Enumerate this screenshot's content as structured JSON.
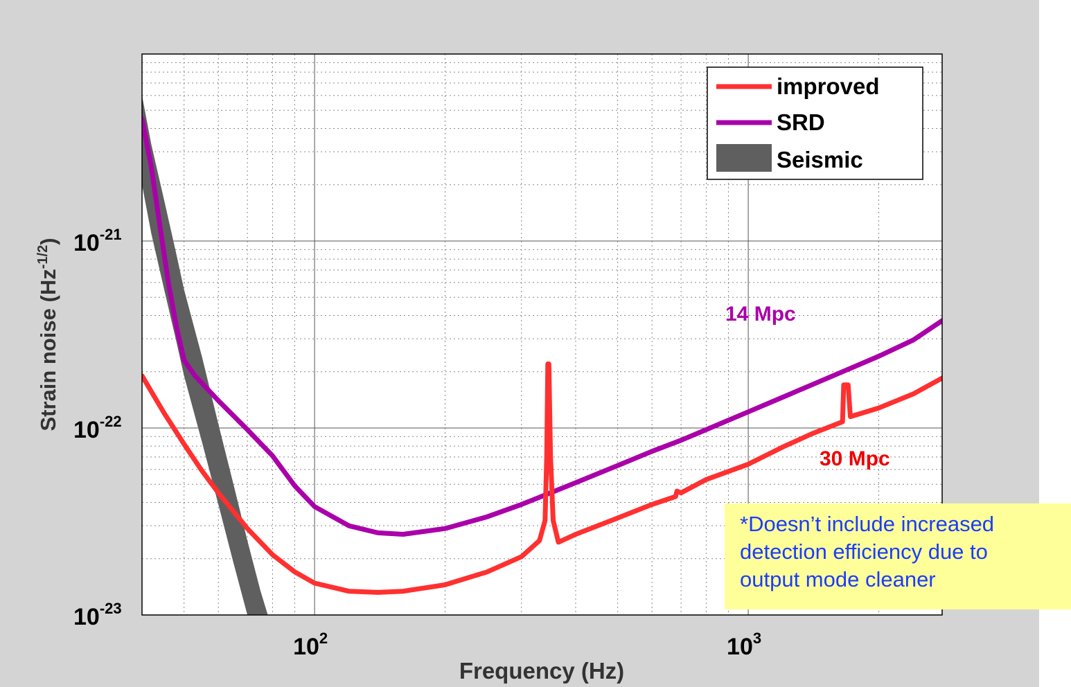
{
  "chart_data": {
    "type": "line",
    "xscale": "log",
    "yscale": "log",
    "xlim": [
      40,
      2800
    ],
    "ylim": [
      1e-23,
      1e-20
    ],
    "grid": true,
    "legend_placement": "top-right",
    "xlabel": "Frequency (Hz)",
    "ylabel_text": "Strain noise (Hz",
    "ylabel_exp": "-1/2",
    "ylabel_close": ")",
    "x_ticks": [
      {
        "value": 100,
        "base": "10",
        "exp": "2"
      },
      {
        "value": 1000,
        "base": "10",
        "exp": "3"
      }
    ],
    "y_ticks": [
      {
        "value": 1e-21,
        "base": "10",
        "exp": "-21"
      },
      {
        "value": 1e-22,
        "base": "10",
        "exp": "-22"
      },
      {
        "value": 1e-23,
        "base": "10",
        "exp": "-23"
      }
    ],
    "series": [
      {
        "name": "improved",
        "color": "#ff3030",
        "points": [
          [
            40,
            1.9e-22
          ],
          [
            45,
            1.2e-22
          ],
          [
            50,
            8.2e-23
          ],
          [
            55,
            5.9e-23
          ],
          [
            60,
            4.5e-23
          ],
          [
            70,
            2.9e-23
          ],
          [
            80,
            2.1e-23
          ],
          [
            90,
            1.7e-23
          ],
          [
            100,
            1.48e-23
          ],
          [
            120,
            1.34e-23
          ],
          [
            140,
            1.32e-23
          ],
          [
            160,
            1.34e-23
          ],
          [
            200,
            1.45e-23
          ],
          [
            250,
            1.7e-23
          ],
          [
            300,
            2.05e-23
          ],
          [
            330,
            2.5e-23
          ],
          [
            340,
            3.2e-23
          ],
          [
            343,
            7e-23
          ],
          [
            345,
            2.2e-22
          ],
          [
            347,
            2.2e-22
          ],
          [
            350,
            7e-23
          ],
          [
            355,
            3.2e-23
          ],
          [
            365,
            2.45e-23
          ],
          [
            400,
            2.7e-23
          ],
          [
            500,
            3.3e-23
          ],
          [
            600,
            3.9e-23
          ],
          [
            680,
            4.3e-23
          ],
          [
            685,
            4.6e-23
          ],
          [
            700,
            4.5e-23
          ],
          [
            800,
            5.3e-23
          ],
          [
            1000,
            6.4e-23
          ],
          [
            1200,
            7.9e-23
          ],
          [
            1400,
            9.3e-23
          ],
          [
            1650,
            1.08e-22
          ],
          [
            1660,
            1.7e-22
          ],
          [
            1700,
            1.7e-22
          ],
          [
            1720,
            1.15e-22
          ],
          [
            2000,
            1.28e-22
          ],
          [
            2400,
            1.52e-22
          ],
          [
            2800,
            1.85e-22
          ]
        ]
      },
      {
        "name": "SRD",
        "color": "#aa00aa",
        "points": [
          [
            40,
            4.5e-21
          ],
          [
            42,
            2.5e-21
          ],
          [
            44,
            1.2e-21
          ],
          [
            46,
            6e-22
          ],
          [
            48,
            3.5e-22
          ],
          [
            50,
            2.3e-22
          ],
          [
            53,
            1.9e-22
          ],
          [
            60,
            1.4e-22
          ],
          [
            70,
            9.8e-23
          ],
          [
            80,
            7.1e-23
          ],
          [
            90,
            4.9e-23
          ],
          [
            100,
            3.8e-23
          ],
          [
            120,
            3e-23
          ],
          [
            140,
            2.75e-23
          ],
          [
            160,
            2.7e-23
          ],
          [
            200,
            2.9e-23
          ],
          [
            250,
            3.35e-23
          ],
          [
            300,
            3.9e-23
          ],
          [
            350,
            4.5e-23
          ],
          [
            400,
            5.1e-23
          ],
          [
            500,
            6.3e-23
          ],
          [
            600,
            7.5e-23
          ],
          [
            700,
            8.6e-23
          ],
          [
            800,
            9.8e-23
          ],
          [
            1000,
            1.22e-22
          ],
          [
            1200,
            1.46e-22
          ],
          [
            1500,
            1.82e-22
          ],
          [
            2000,
            2.42e-22
          ],
          [
            2400,
            2.95e-22
          ],
          [
            2800,
            3.75e-22
          ]
        ]
      },
      {
        "name": "Seismic",
        "color": "#5f5f5f",
        "band_upper": [
          [
            40,
            6e-21
          ],
          [
            42,
            3.3e-21
          ],
          [
            45,
            1.65e-21
          ],
          [
            48,
            8.5e-22
          ],
          [
            50,
            5.5e-22
          ],
          [
            55,
            2.4e-22
          ],
          [
            60,
            1.05e-22
          ],
          [
            65,
            5e-23
          ],
          [
            70,
            2.5e-23
          ],
          [
            75,
            1.35e-23
          ],
          [
            78,
            1e-23
          ]
        ],
        "band_lower": [
          [
            40,
            2e-21
          ],
          [
            42,
            1.1e-21
          ],
          [
            45,
            5.5e-22
          ],
          [
            48,
            2.9e-22
          ],
          [
            50,
            1.9e-22
          ],
          [
            55,
            8.4e-23
          ],
          [
            60,
            3.9e-23
          ],
          [
            65,
            1.9e-23
          ],
          [
            70,
            1e-23
          ]
        ]
      }
    ],
    "annotations": [
      {
        "text": "14 Mpc",
        "color": "#aa00aa"
      },
      {
        "text": "30 Mpc",
        "color": "#ee0000"
      }
    ]
  },
  "note": {
    "lines": [
      "*Doesn’t include increased",
      "detection efficiency due to",
      "output mode cleaner"
    ]
  }
}
